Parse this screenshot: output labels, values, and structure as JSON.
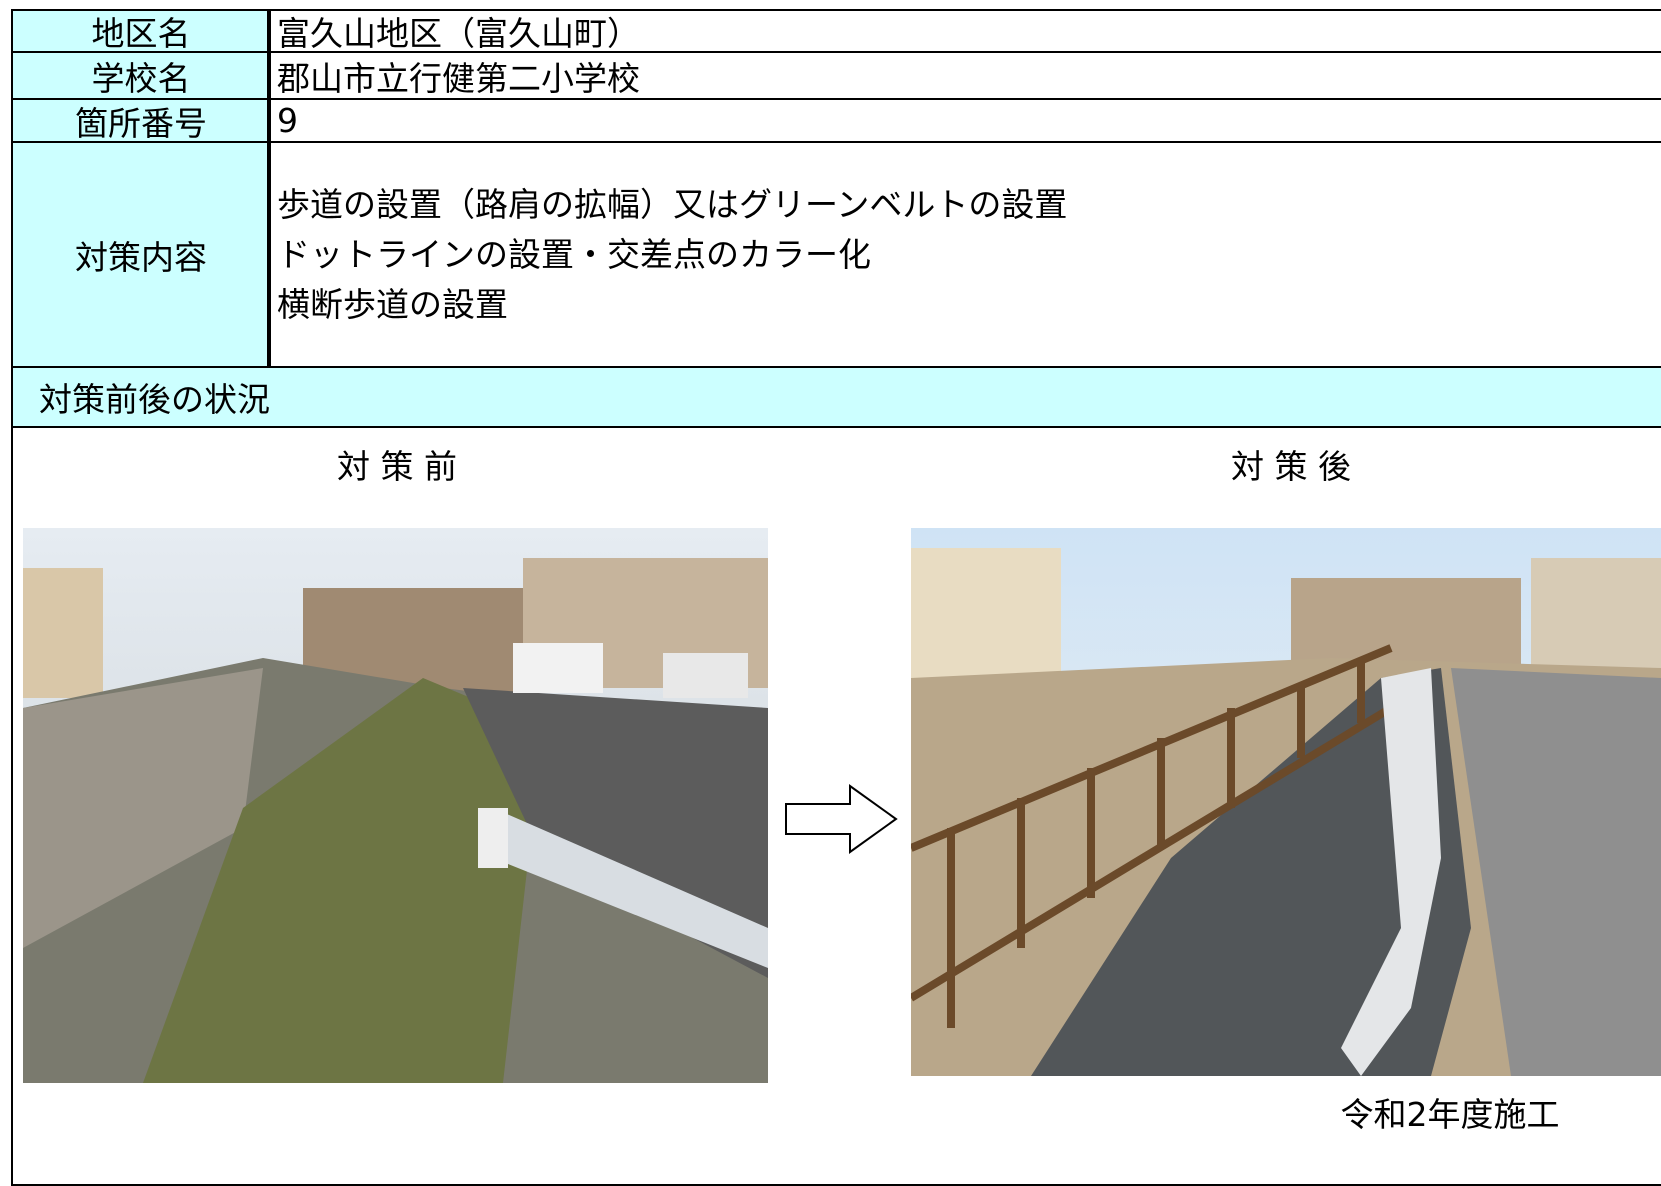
{
  "table": {
    "rows": [
      {
        "label": "地区名",
        "value": "富久山地区（富久山町）"
      },
      {
        "label": "学校名",
        "value": "郡山市立行健第二小学校"
      },
      {
        "label": "箇所番号",
        "value": "9"
      }
    ],
    "measures": {
      "label": "対策内容",
      "lines": [
        "歩道の設置（路肩の拡幅）又はグリーンベルトの設置",
        "ドットラインの設置・交差点のカラー化",
        "横断歩道の設置"
      ]
    }
  },
  "section": {
    "title": "対策前後の状況",
    "before": "対 策 前",
    "after": "対 策 後",
    "note": "令和2年度施工"
  }
}
